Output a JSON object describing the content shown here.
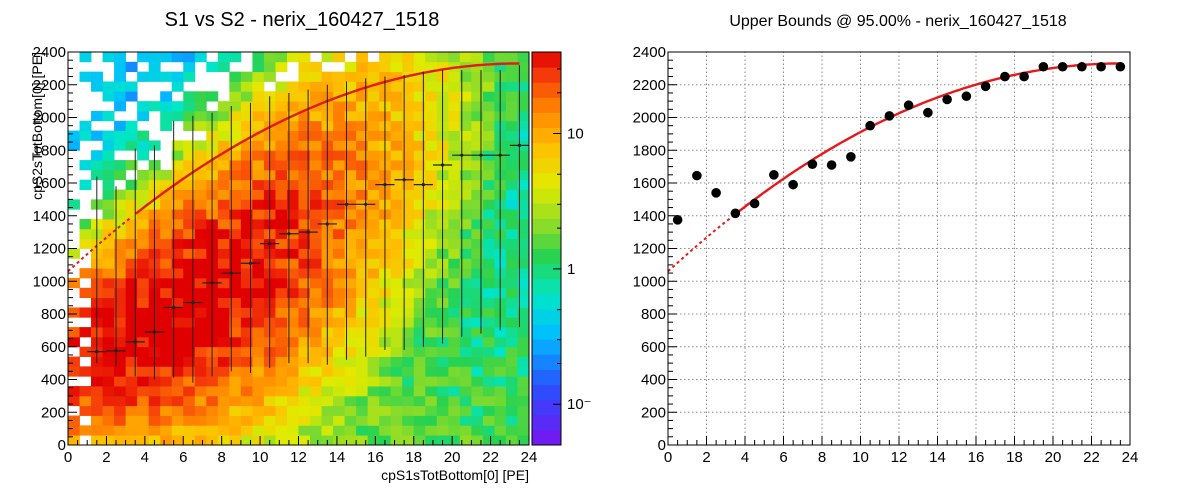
{
  "chart_data": [
    {
      "type": "heatmap",
      "title": "S1 vs S2 - nerix_160427_1518",
      "xlabel": "cpS1sTotBottom[0] [PE]",
      "ylabel": "cpS2sTotBottom[0] [PE]",
      "xlim": [
        0,
        24
      ],
      "ylim": [
        0,
        2400
      ],
      "x_ticks": [
        "0",
        "2",
        "4",
        "6",
        "8",
        "10",
        "12",
        "14",
        "16",
        "18",
        "20",
        "22",
        "24"
      ],
      "y_ticks": [
        "0",
        "200",
        "400",
        "600",
        "800",
        "1000",
        "1200",
        "1400",
        "1600",
        "1800",
        "2000",
        "2200",
        "2400"
      ],
      "colorbar": {
        "scale": "log",
        "range": [
          0.05,
          40
        ],
        "tick_labels": [
          "10⁻",
          "1",
          "10"
        ]
      },
      "profile": {
        "name": "mean with error bars",
        "x": [
          1.5,
          2.5,
          3.5,
          4.5,
          5.5,
          6.5,
          7.5,
          8.5,
          9.5,
          10.5,
          11.5,
          12.5,
          13.5,
          14.5,
          15.5,
          16.5,
          17.5,
          18.5,
          19.5,
          20.5,
          21.5,
          22.5,
          23.5
        ],
        "y": [
          570,
          575,
          630,
          690,
          840,
          870,
          990,
          1050,
          1110,
          1230,
          1290,
          1300,
          1350,
          1470,
          1470,
          1590,
          1620,
          1590,
          1710,
          1770,
          1770,
          1770,
          1830
        ],
        "y_err_low": [
          500,
          480,
          420,
          400,
          410,
          380,
          420,
          450,
          440,
          470,
          500,
          500,
          490,
          520,
          540,
          580,
          580,
          600,
          620,
          660,
          680,
          700,
          720
        ],
        "y_err_high": [
          1640,
          1580,
          1810,
          1830,
          1980,
          2010,
          2030,
          2070,
          2090,
          2130,
          2150,
          2170,
          2200,
          2220,
          2240,
          2250,
          2260,
          2280,
          2290,
          2290,
          2290,
          2290,
          2320
        ]
      },
      "fit_curve": {
        "color": "#e41a1c",
        "solid_from_x": 3.5,
        "x_end": 23.5,
        "y_at_x0": 1060,
        "y_at_x_end": 2330
      }
    },
    {
      "type": "scatter",
      "title": "Upper Bounds @ 95.00% - nerix_160427_1518",
      "xlim": [
        0,
        24
      ],
      "ylim": [
        0,
        2400
      ],
      "x_ticks": [
        "0",
        "2",
        "4",
        "6",
        "8",
        "10",
        "12",
        "14",
        "16",
        "18",
        "20",
        "22",
        "24"
      ],
      "y_ticks": [
        "0",
        "200",
        "400",
        "600",
        "800",
        "1000",
        "1200",
        "1400",
        "1600",
        "1800",
        "2000",
        "2200",
        "2400"
      ],
      "grid": true,
      "points": {
        "x": [
          0.5,
          1.5,
          2.5,
          3.5,
          4.5,
          5.5,
          6.5,
          7.5,
          8.5,
          9.5,
          10.5,
          11.5,
          12.5,
          13.5,
          14.5,
          15.5,
          16.5,
          17.5,
          18.5,
          19.5,
          20.5,
          21.5,
          22.5,
          23.5
        ],
        "y": [
          1375,
          1645,
          1540,
          1415,
          1475,
          1650,
          1590,
          1715,
          1710,
          1760,
          1950,
          2010,
          2075,
          2030,
          2110,
          2130,
          2190,
          2250,
          2250,
          2310,
          2310,
          2310,
          2310,
          2310
        ]
      },
      "fit_curve": {
        "color": "#e41a1c",
        "solid_from_x": 3.5,
        "x_end": 23.5,
        "y_at_x0": 1060,
        "y_at_x_end": 2330
      }
    }
  ]
}
